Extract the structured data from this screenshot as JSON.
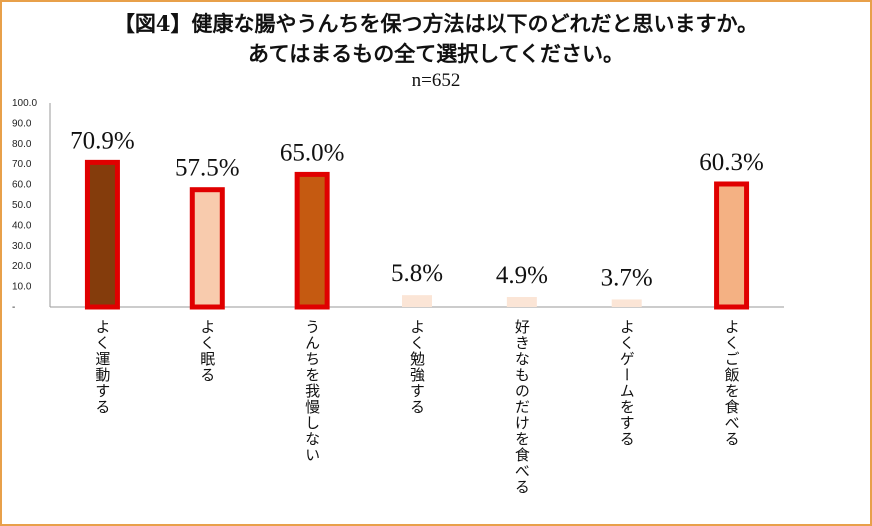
{
  "title_line1": "【図4】健康な腸やうんちを保つ方法は以下のどれだと思いますか。",
  "title_line2": "あてはまるもの全て選択してください。",
  "sample": "n=652",
  "chart_data": {
    "type": "bar",
    "categories": [
      "よく運動する",
      "よく眠る",
      "うんちを我慢しない",
      "よく勉強する",
      "好きなものだけを食べる",
      "よくゲームをする",
      "よくご飯を食べる"
    ],
    "values": [
      70.9,
      57.5,
      65.0,
      5.8,
      4.9,
      3.7,
      60.3
    ],
    "value_labels": [
      "70.9%",
      "57.5%",
      "65.0%",
      "5.8%",
      "4.9%",
      "3.7%",
      "60.3%"
    ],
    "bar_colors": [
      "#843c0c",
      "#f8cbad",
      "#c55a11",
      "#fbe5d6",
      "#fbe5d6",
      "#fbe5d6",
      "#f4b183"
    ],
    "highlighted": [
      true,
      true,
      true,
      false,
      false,
      false,
      true
    ],
    "highlight_color": "#e00000",
    "y_ticks": [
      "-",
      "10.0",
      "20.0",
      "30.0",
      "40.0",
      "50.0",
      "60.0",
      "70.0",
      "80.0",
      "90.0",
      "100.0"
    ],
    "ylim": [
      0,
      100
    ],
    "grid": false
  }
}
